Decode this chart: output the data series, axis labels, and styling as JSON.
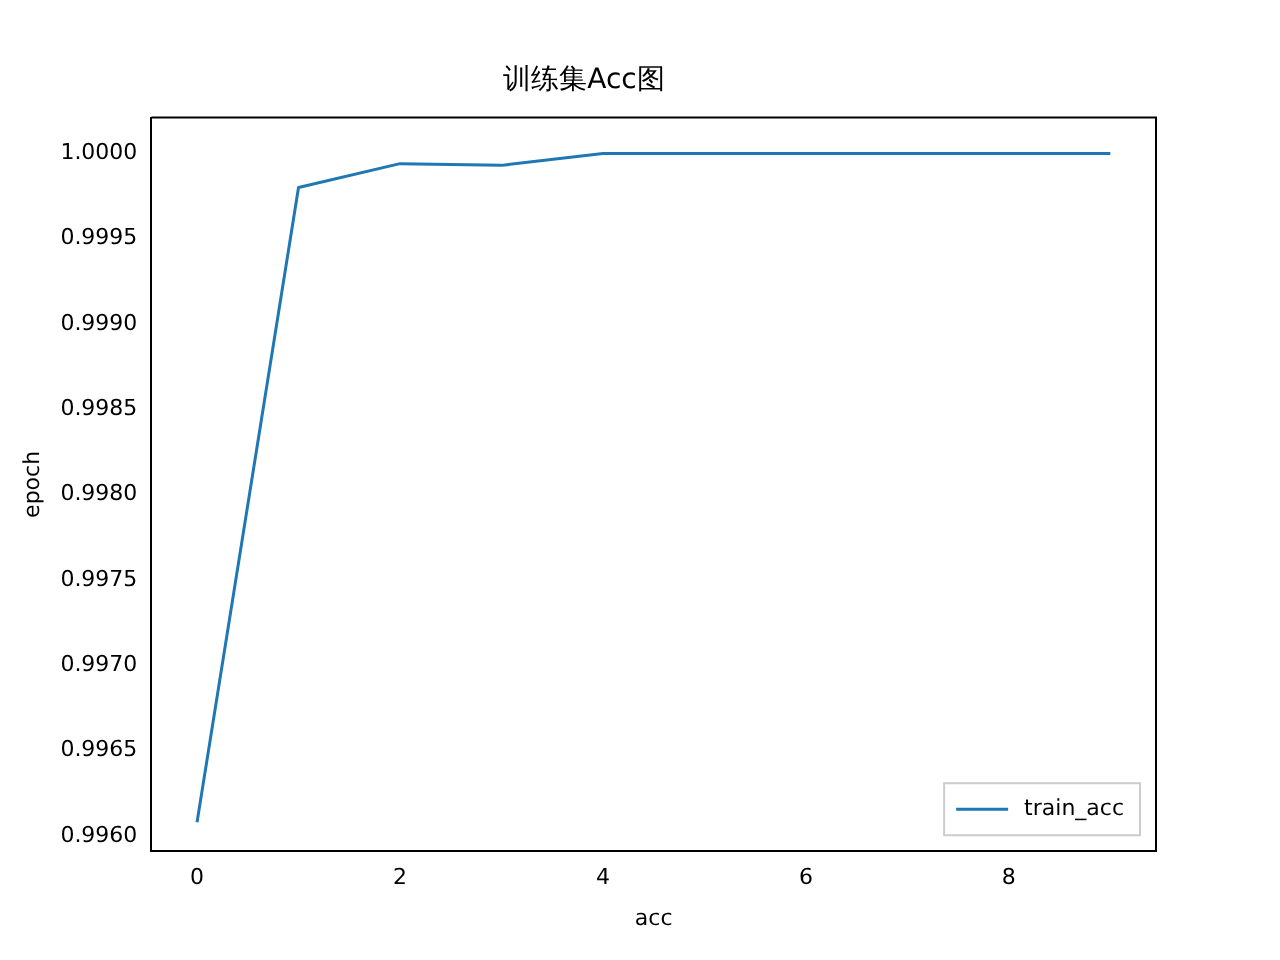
{
  "chart_data": {
    "type": "line",
    "title": "训练集Acc图",
    "xlabel": "acc",
    "ylabel": "epoch",
    "x": [
      0,
      1,
      2,
      3,
      4,
      5,
      6,
      7,
      8,
      9
    ],
    "series": [
      {
        "name": "train_acc",
        "color": "#1f77b4",
        "values": [
          0.99608,
          0.9998,
          0.99994,
          0.99993,
          1.0,
          1.0,
          1.0,
          1.0,
          1.0,
          1.0
        ]
      }
    ],
    "xlim": [
      -0.45,
      9.45
    ],
    "xticks": [
      0,
      2,
      4,
      6,
      8
    ],
    "ylim": [
      0.99591,
      1.00021
    ],
    "yticks": [
      {
        "value": 0.996,
        "label": "0.9960"
      },
      {
        "value": 0.9965,
        "label": "0.9965"
      },
      {
        "value": 0.997,
        "label": "0.9970"
      },
      {
        "value": 0.9975,
        "label": "0.9975"
      },
      {
        "value": 0.998,
        "label": "0.9980"
      },
      {
        "value": 0.9985,
        "label": "0.9985"
      },
      {
        "value": 0.999,
        "label": "0.9990"
      },
      {
        "value": 0.9995,
        "label": "0.9995"
      },
      {
        "value": 1.0,
        "label": "1.0000"
      }
    ],
    "grid": false,
    "legend": "bottom right",
    "marker": "none",
    "line_style": "solid"
  }
}
